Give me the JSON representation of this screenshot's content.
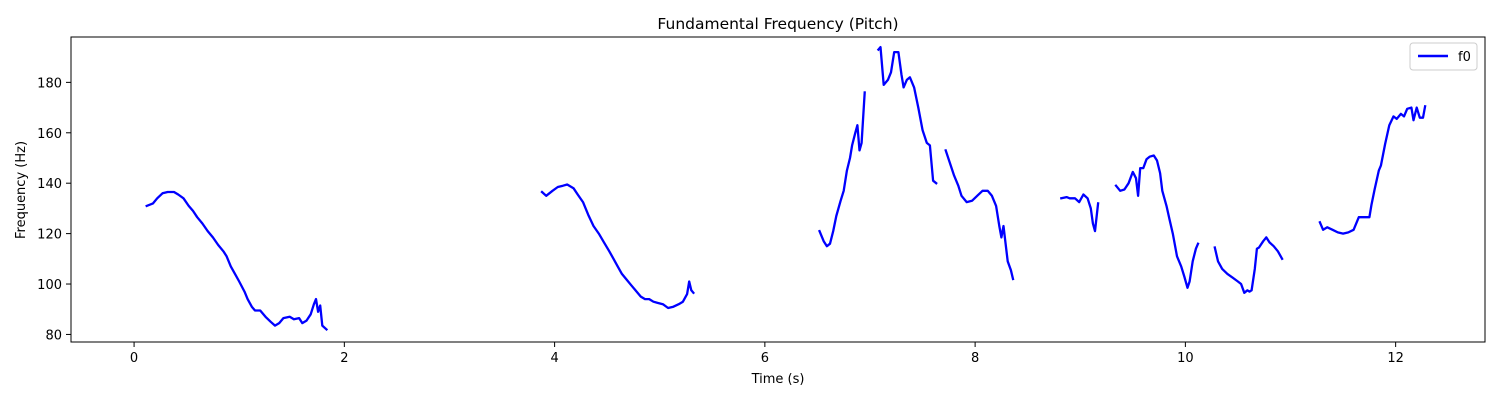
{
  "chart_data": {
    "type": "line",
    "title": "Fundamental Frequency (Pitch)",
    "xlabel": "Time (s)",
    "ylabel": "Frequency (Hz)",
    "xlim": [
      -0.6,
      12.85
    ],
    "ylim": [
      77,
      198
    ],
    "xticks": [
      0,
      2,
      4,
      6,
      8,
      10,
      12
    ],
    "yticks": [
      80,
      100,
      120,
      140,
      160,
      180
    ],
    "grid": false,
    "legend_position": "top-right",
    "series": [
      {
        "name": "f0",
        "color": "#0000ff",
        "segments": [
          [
            [
              0.12,
              131
            ],
            [
              0.18,
              132
            ],
            [
              0.22,
              134
            ],
            [
              0.27,
              136
            ],
            [
              0.32,
              136.5
            ],
            [
              0.38,
              136.5
            ],
            [
              0.42,
              135.5
            ],
            [
              0.47,
              134
            ],
            [
              0.52,
              131
            ],
            [
              0.56,
              129
            ],
            [
              0.6,
              126.5
            ],
            [
              0.65,
              124
            ],
            [
              0.7,
              121
            ],
            [
              0.75,
              118.5
            ],
            [
              0.8,
              115.5
            ],
            [
              0.85,
              113
            ],
            [
              0.88,
              111
            ],
            [
              0.92,
              107
            ],
            [
              0.96,
              104
            ],
            [
              1.0,
              101
            ],
            [
              1.05,
              97
            ],
            [
              1.08,
              94
            ],
            [
              1.12,
              91
            ],
            [
              1.15,
              89.5
            ],
            [
              1.2,
              89.5
            ],
            [
              1.25,
              87
            ],
            [
              1.3,
              85
            ],
            [
              1.34,
              83.5
            ],
            [
              1.38,
              84.5
            ],
            [
              1.42,
              86.5
            ],
            [
              1.48,
              87
            ],
            [
              1.52,
              86
            ],
            [
              1.57,
              86.5
            ],
            [
              1.6,
              84.5
            ],
            [
              1.64,
              85.5
            ],
            [
              1.68,
              88
            ],
            [
              1.71,
              92
            ],
            [
              1.73,
              94
            ],
            [
              1.75,
              89
            ],
            [
              1.77,
              91.5
            ],
            [
              1.79,
              83.5
            ],
            [
              1.83,
              82
            ]
          ],
          [
            [
              3.88,
              136.5
            ],
            [
              3.92,
              135
            ],
            [
              3.98,
              137
            ],
            [
              4.03,
              138.5
            ],
            [
              4.08,
              139
            ],
            [
              4.12,
              139.5
            ],
            [
              4.18,
              138
            ],
            [
              4.22,
              135.5
            ],
            [
              4.27,
              132.5
            ],
            [
              4.32,
              127.5
            ],
            [
              4.37,
              123
            ],
            [
              4.42,
              120
            ],
            [
              4.47,
              116.5
            ],
            [
              4.52,
              113
            ],
            [
              4.56,
              110
            ],
            [
              4.6,
              107
            ],
            [
              4.64,
              104
            ],
            [
              4.68,
              102
            ],
            [
              4.73,
              99.5
            ],
            [
              4.78,
              97
            ],
            [
              4.82,
              95
            ],
            [
              4.86,
              94
            ],
            [
              4.9,
              94
            ],
            [
              4.94,
              93
            ],
            [
              4.98,
              92.5
            ],
            [
              5.03,
              92
            ],
            [
              5.08,
              90.5
            ],
            [
              5.13,
              91
            ],
            [
              5.18,
              92
            ],
            [
              5.22,
              93
            ],
            [
              5.26,
              96
            ],
            [
              5.28,
              101
            ],
            [
              5.3,
              97.5
            ],
            [
              5.32,
              96.5
            ]
          ],
          [
            [
              6.52,
              121
            ],
            [
              6.56,
              117
            ],
            [
              6.59,
              115
            ],
            [
              6.62,
              116
            ],
            [
              6.65,
              121
            ],
            [
              6.68,
              127
            ],
            [
              6.72,
              133
            ],
            [
              6.75,
              137
            ],
            [
              6.78,
              145
            ],
            [
              6.81,
              150
            ],
            [
              6.83,
              155
            ],
            [
              6.86,
              160
            ],
            [
              6.88,
              163
            ],
            [
              6.9,
              153
            ],
            [
              6.92,
              156
            ],
            [
              6.95,
              176
            ]
          ],
          [
            [
              7.08,
              193
            ],
            [
              7.1,
              194
            ],
            [
              7.13,
              179
            ],
            [
              7.17,
              181
            ],
            [
              7.2,
              184
            ],
            [
              7.23,
              192
            ],
            [
              7.27,
              192
            ],
            [
              7.3,
              183
            ],
            [
              7.32,
              178
            ],
            [
              7.35,
              181
            ],
            [
              7.38,
              182
            ],
            [
              7.42,
              178
            ],
            [
              7.46,
              170
            ],
            [
              7.5,
              161
            ],
            [
              7.54,
              156
            ],
            [
              7.57,
              155
            ],
            [
              7.6,
              141
            ],
            [
              7.63,
              140
            ]
          ],
          [
            [
              7.72,
              153
            ],
            [
              7.76,
              148
            ],
            [
              7.8,
              143
            ],
            [
              7.84,
              139
            ],
            [
              7.87,
              135
            ],
            [
              7.92,
              132.5
            ],
            [
              7.97,
              133
            ],
            [
              8.02,
              135
            ],
            [
              8.07,
              137
            ],
            [
              8.12,
              137
            ],
            [
              8.16,
              135
            ],
            [
              8.2,
              131
            ],
            [
              8.23,
              123
            ],
            [
              8.25,
              118.5
            ],
            [
              8.27,
              123
            ],
            [
              8.29,
              116
            ],
            [
              8.31,
              109
            ],
            [
              8.34,
              105.5
            ],
            [
              8.36,
              102
            ]
          ],
          [
            [
              8.82,
              134
            ],
            [
              8.87,
              134.5
            ],
            [
              8.9,
              134
            ],
            [
              8.95,
              134
            ],
            [
              8.99,
              132.5
            ],
            [
              9.03,
              135.5
            ],
            [
              9.07,
              134
            ],
            [
              9.1,
              130
            ],
            [
              9.12,
              124
            ],
            [
              9.14,
              121
            ],
            [
              9.17,
              132
            ]
          ],
          [
            [
              9.34,
              139
            ],
            [
              9.38,
              137
            ],
            [
              9.42,
              137.5
            ],
            [
              9.46,
              140
            ],
            [
              9.5,
              144.5
            ],
            [
              9.53,
              142
            ],
            [
              9.55,
              135
            ],
            [
              9.57,
              146
            ],
            [
              9.6,
              146
            ],
            [
              9.63,
              149.5
            ],
            [
              9.66,
              150.5
            ],
            [
              9.7,
              151
            ],
            [
              9.73,
              149
            ],
            [
              9.76,
              144
            ],
            [
              9.78,
              137
            ],
            [
              9.82,
              131
            ],
            [
              9.85,
              125.5
            ],
            [
              9.88,
              120
            ],
            [
              9.92,
              111
            ],
            [
              9.96,
              107
            ],
            [
              9.99,
              103
            ],
            [
              10.02,
              98.5
            ],
            [
              10.04,
              101
            ],
            [
              10.07,
              109
            ],
            [
              10.1,
              114
            ],
            [
              10.12,
              116
            ]
          ],
          [
            [
              10.28,
              114.5
            ],
            [
              10.31,
              109
            ],
            [
              10.35,
              106
            ],
            [
              10.4,
              104
            ],
            [
              10.45,
              102.5
            ],
            [
              10.5,
              101
            ],
            [
              10.53,
              100
            ],
            [
              10.56,
              96.5
            ],
            [
              10.59,
              97.5
            ],
            [
              10.61,
              97
            ],
            [
              10.63,
              97.5
            ],
            [
              10.66,
              106
            ],
            [
              10.68,
              114
            ],
            [
              10.7,
              114.5
            ],
            [
              10.74,
              117
            ],
            [
              10.77,
              118.5
            ],
            [
              10.8,
              116.5
            ],
            [
              10.84,
              115
            ],
            [
              10.88,
              113
            ],
            [
              10.92,
              110
            ]
          ],
          [
            [
              11.28,
              124.5
            ],
            [
              11.31,
              121.5
            ],
            [
              11.35,
              122.5
            ],
            [
              11.4,
              121.5
            ],
            [
              11.45,
              120.5
            ],
            [
              11.5,
              120
            ],
            [
              11.55,
              120.5
            ],
            [
              11.6,
              121.5
            ],
            [
              11.65,
              126.5
            ],
            [
              11.7,
              126.5
            ],
            [
              11.75,
              126.5
            ],
            [
              11.77,
              131.5
            ],
            [
              11.8,
              137.5
            ],
            [
              11.84,
              145
            ],
            [
              11.86,
              147
            ],
            [
              11.9,
              155.5
            ],
            [
              11.94,
              163
            ],
            [
              11.98,
              166.5
            ],
            [
              12.01,
              165.5
            ],
            [
              12.05,
              167.5
            ],
            [
              12.08,
              166.5
            ],
            [
              12.11,
              169.5
            ],
            [
              12.15,
              170
            ],
            [
              12.17,
              165
            ],
            [
              12.2,
              170
            ],
            [
              12.23,
              166
            ],
            [
              12.26,
              166
            ],
            [
              12.28,
              170.5
            ]
          ]
        ]
      }
    ]
  }
}
